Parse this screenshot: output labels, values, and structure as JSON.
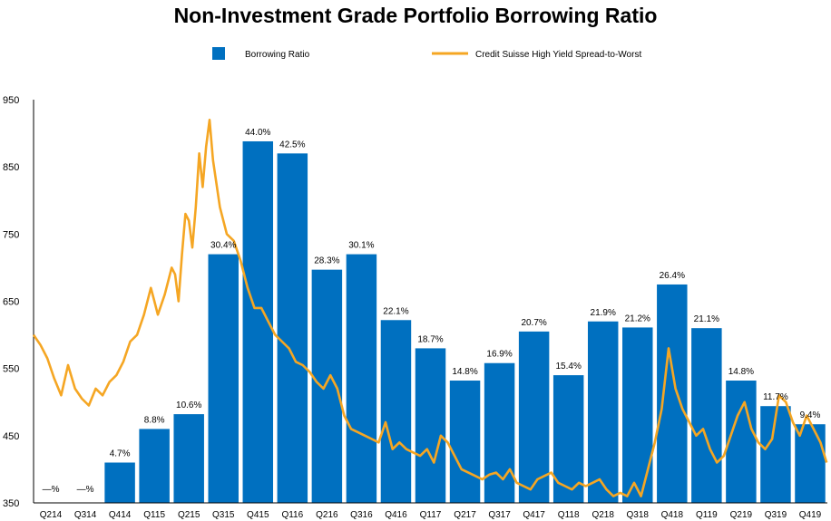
{
  "chart_data": {
    "type": "bar",
    "title": "Non-Investment Grade Portfolio Borrowing Ratio",
    "xlabel": "",
    "ylabel": "",
    "ylim": [
      350,
      950
    ],
    "yticks": [
      350,
      450,
      550,
      650,
      750,
      850,
      950
    ],
    "categories": [
      "Q214",
      "Q314",
      "Q414",
      "Q115",
      "Q215",
      "Q315",
      "Q415",
      "Q116",
      "Q216",
      "Q316",
      "Q416",
      "Q117",
      "Q217",
      "Q317",
      "Q417",
      "Q118",
      "Q218",
      "Q318",
      "Q418",
      "Q119",
      "Q219",
      "Q319",
      "Q419"
    ],
    "series": [
      {
        "name": "Borrowing Ratio",
        "color": "#0070C0",
        "values": [
          0,
          0,
          4.7,
          8.8,
          10.6,
          30.4,
          44.0,
          42.5,
          28.3,
          30.1,
          22.1,
          18.7,
          14.8,
          16.9,
          20.7,
          15.4,
          21.9,
          21.2,
          26.4,
          21.1,
          14.8,
          11.7,
          9.4
        ],
        "plotted_axis_values": [
          350,
          350,
          410,
          460,
          482,
          720,
          888,
          870,
          697,
          720,
          622,
          580,
          532,
          558,
          605,
          540,
          620,
          611,
          675,
          610,
          532,
          494,
          467
        ],
        "labels": [
          "—%",
          "—%",
          "4.7%",
          "8.8%",
          "10.6%",
          "30.4%",
          "44.0%",
          "42.5%",
          "28.3%",
          "30.1%",
          "22.1%",
          "18.7%",
          "14.8%",
          "16.9%",
          "20.7%",
          "15.4%",
          "21.9%",
          "21.2%",
          "26.4%",
          "21.1%",
          "14.8%",
          "11.7%",
          "9.4%"
        ]
      },
      {
        "name": "Credit Suisse High Yield Spread-to-Worst",
        "type": "line",
        "color": "#F5A623",
        "x": [
          0,
          0.2,
          0.4,
          0.6,
          0.8,
          1.0,
          1.2,
          1.4,
          1.6,
          1.8,
          2.0,
          2.2,
          2.4,
          2.6,
          2.8,
          3.0,
          3.2,
          3.4,
          3.5,
          3.6,
          3.8,
          4.0,
          4.1,
          4.2,
          4.3,
          4.4,
          4.5,
          4.6,
          4.7,
          4.8,
          4.9,
          5.0,
          5.1,
          5.2,
          5.4,
          5.6,
          5.8,
          6.0,
          6.2,
          6.4,
          6.6,
          6.8,
          7.0,
          7.2,
          7.4,
          7.6,
          7.8,
          8.0,
          8.2,
          8.4,
          8.6,
          8.8,
          9.0,
          9.2,
          9.4,
          9.6,
          9.8,
          10.0,
          10.2,
          10.4,
          10.6,
          10.8,
          11.0,
          11.2,
          11.4,
          11.6,
          11.8,
          12.0,
          12.2,
          12.4,
          12.6,
          12.8,
          13.0,
          13.2,
          13.4,
          13.6,
          13.8,
          14.0,
          14.2,
          14.4,
          14.6,
          14.8,
          15.0,
          15.2,
          15.4,
          15.6,
          15.8,
          16.0,
          16.2,
          16.4,
          16.6,
          16.8,
          17.0,
          17.2,
          17.4,
          17.6,
          17.8,
          18.0,
          18.2,
          18.4,
          18.6,
          18.8,
          19.0,
          19.2,
          19.4,
          19.6,
          19.8,
          20.0,
          20.2,
          20.4,
          20.6,
          20.8,
          21.0,
          21.2,
          21.4,
          21.6,
          21.8,
          22.0,
          22.2,
          22.4,
          22.6,
          22.8,
          22.98
        ],
        "values": [
          600,
          585,
          565,
          535,
          510,
          555,
          520,
          505,
          495,
          520,
          510,
          530,
          540,
          560,
          590,
          600,
          630,
          670,
          650,
          630,
          660,
          700,
          690,
          650,
          720,
          780,
          770,
          730,
          790,
          870,
          820,
          880,
          920,
          860,
          790,
          750,
          740,
          710,
          670,
          640,
          640,
          620,
          600,
          590,
          580,
          560,
          555,
          545,
          530,
          520,
          540,
          520,
          480,
          460,
          455,
          450,
          445,
          440,
          470,
          430,
          440,
          430,
          425,
          420,
          430,
          410,
          450,
          440,
          420,
          400,
          395,
          390,
          385,
          392,
          395,
          385,
          400,
          380,
          375,
          370,
          385,
          390,
          395,
          380,
          375,
          370,
          380,
          375,
          380,
          385,
          370,
          360,
          365,
          360,
          380,
          360,
          400,
          440,
          490,
          580,
          520,
          490,
          470,
          450,
          460,
          430,
          410,
          420,
          450,
          480,
          500,
          460,
          440,
          430,
          445,
          510,
          500,
          470,
          450,
          480,
          460,
          440,
          410
        ]
      }
    ],
    "legend": {
      "placement": "top"
    }
  }
}
